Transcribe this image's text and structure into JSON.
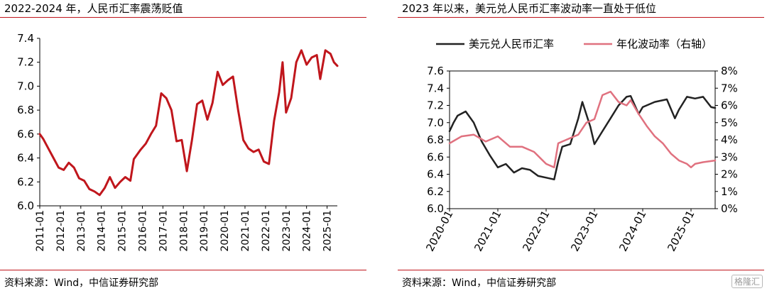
{
  "colors": {
    "accent_red": "#c0161c",
    "pink_series": "#e0717f",
    "black_series": "#222222",
    "axis": "#000000"
  },
  "left_panel": {
    "title": "2022-2024 年，人民币汇率震荡贬值",
    "source": "资料来源：Wind，中信证券研究部"
  },
  "right_panel": {
    "title": "2023 年以来，美元兑人民币汇率波动率一直处于低位",
    "source": "资料来源：Wind，中信证券研究部"
  },
  "watermark": "格隆汇",
  "chart_data": [
    {
      "type": "line",
      "title": "",
      "xlabel": "",
      "ylabel": "",
      "xlim": [
        "2011-01",
        "2025-07"
      ],
      "ylim": [
        6.0,
        7.4
      ],
      "y_ticks": [
        "6.0",
        "6.2",
        "6.4",
        "6.6",
        "6.8",
        "7.0",
        "7.2",
        "7.4"
      ],
      "x_ticks": [
        "2011-01",
        "2012-01",
        "2013-01",
        "2014-01",
        "2015-01",
        "2016-01",
        "2017-01",
        "2018-01",
        "2019-01",
        "2020-01",
        "2021-01",
        "2022-01",
        "2023-01",
        "2024-01",
        "2025-01"
      ],
      "grid": false,
      "series": [
        {
          "color": "#c0161c",
          "points": [
            [
              "2011-01",
              6.6
            ],
            [
              "2011-03",
              6.56
            ],
            [
              "2011-06",
              6.48
            ],
            [
              "2011-09",
              6.4
            ],
            [
              "2011-12",
              6.32
            ],
            [
              "2012-03",
              6.3
            ],
            [
              "2012-06",
              6.36
            ],
            [
              "2012-09",
              6.32
            ],
            [
              "2012-12",
              6.23
            ],
            [
              "2013-03",
              6.21
            ],
            [
              "2013-06",
              6.14
            ],
            [
              "2013-09",
              6.12
            ],
            [
              "2013-12",
              6.09
            ],
            [
              "2014-03",
              6.15
            ],
            [
              "2014-06",
              6.24
            ],
            [
              "2014-09",
              6.15
            ],
            [
              "2014-12",
              6.2
            ],
            [
              "2015-03",
              6.24
            ],
            [
              "2015-06",
              6.21
            ],
            [
              "2015-08",
              6.39
            ],
            [
              "2015-12",
              6.47
            ],
            [
              "2016-03",
              6.52
            ],
            [
              "2016-06",
              6.6
            ],
            [
              "2016-09",
              6.67
            ],
            [
              "2016-12",
              6.94
            ],
            [
              "2017-03",
              6.9
            ],
            [
              "2017-06",
              6.8
            ],
            [
              "2017-09",
              6.54
            ],
            [
              "2017-12",
              6.55
            ],
            [
              "2018-03",
              6.29
            ],
            [
              "2018-06",
              6.55
            ],
            [
              "2018-09",
              6.85
            ],
            [
              "2018-12",
              6.88
            ],
            [
              "2019-03",
              6.72
            ],
            [
              "2019-06",
              6.86
            ],
            [
              "2019-09",
              7.12
            ],
            [
              "2019-12",
              7.01
            ],
            [
              "2020-03",
              7.05
            ],
            [
              "2020-06",
              7.08
            ],
            [
              "2020-09",
              6.8
            ],
            [
              "2020-12",
              6.55
            ],
            [
              "2021-03",
              6.48
            ],
            [
              "2021-06",
              6.45
            ],
            [
              "2021-09",
              6.47
            ],
            [
              "2021-12",
              6.37
            ],
            [
              "2022-03",
              6.35
            ],
            [
              "2022-06",
              6.71
            ],
            [
              "2022-09",
              6.95
            ],
            [
              "2022-11",
              7.2
            ],
            [
              "2023-01",
              6.78
            ],
            [
              "2023-04",
              6.9
            ],
            [
              "2023-07",
              7.2
            ],
            [
              "2023-10",
              7.3
            ],
            [
              "2024-01",
              7.18
            ],
            [
              "2024-04",
              7.24
            ],
            [
              "2024-07",
              7.26
            ],
            [
              "2024-09",
              7.06
            ],
            [
              "2024-12",
              7.3
            ],
            [
              "2025-03",
              7.27
            ],
            [
              "2025-05",
              7.2
            ],
            [
              "2025-07",
              7.17
            ]
          ]
        }
      ]
    },
    {
      "type": "line",
      "title": "",
      "xlabel": "",
      "ylabel": "",
      "y2label": "",
      "xlim": [
        "2020-01",
        "2025-07"
      ],
      "ylim": [
        6.0,
        7.6
      ],
      "y2lim": [
        0,
        8
      ],
      "y_ticks": [
        "6.0",
        "6.2",
        "6.4",
        "6.6",
        "6.8",
        "7.0",
        "7.2",
        "7.4",
        "7.6"
      ],
      "y2_ticks": [
        "0%",
        "1%",
        "2%",
        "3%",
        "4%",
        "5%",
        "6%",
        "7%",
        "8%"
      ],
      "x_ticks": [
        "2020-01",
        "2021-01",
        "2022-01",
        "2023-01",
        "2024-01",
        "2025-01"
      ],
      "legend_position": "top",
      "grid": false,
      "series": [
        {
          "name": "美元兑人民币汇率",
          "color": "#222222",
          "axis": "left",
          "points": [
            [
              "2020-01",
              6.9
            ],
            [
              "2020-02",
              7.0
            ],
            [
              "2020-03",
              7.08
            ],
            [
              "2020-05",
              7.13
            ],
            [
              "2020-07",
              7.0
            ],
            [
              "2020-09",
              6.78
            ],
            [
              "2020-11",
              6.62
            ],
            [
              "2021-01",
              6.48
            ],
            [
              "2021-03",
              6.52
            ],
            [
              "2021-05",
              6.42
            ],
            [
              "2021-07",
              6.47
            ],
            [
              "2021-09",
              6.45
            ],
            [
              "2021-11",
              6.38
            ],
            [
              "2022-01",
              6.36
            ],
            [
              "2022-03",
              6.34
            ],
            [
              "2022-04",
              6.55
            ],
            [
              "2022-05",
              6.72
            ],
            [
              "2022-07",
              6.75
            ],
            [
              "2022-09",
              7.05
            ],
            [
              "2022-10",
              7.24
            ],
            [
              "2022-12",
              6.95
            ],
            [
              "2023-01",
              6.75
            ],
            [
              "2023-03",
              6.9
            ],
            [
              "2023-05",
              7.05
            ],
            [
              "2023-07",
              7.2
            ],
            [
              "2023-09",
              7.3
            ],
            [
              "2023-10",
              7.31
            ],
            [
              "2023-12",
              7.1
            ],
            [
              "2024-01",
              7.18
            ],
            [
              "2024-04",
              7.24
            ],
            [
              "2024-07",
              7.27
            ],
            [
              "2024-09",
              7.05
            ],
            [
              "2024-10",
              7.15
            ],
            [
              "2024-12",
              7.3
            ],
            [
              "2025-02",
              7.28
            ],
            [
              "2025-04",
              7.3
            ],
            [
              "2025-06",
              7.18
            ],
            [
              "2025-07",
              7.17
            ]
          ]
        },
        {
          "name": "年化波动率（右轴）",
          "color": "#e0717f",
          "axis": "right",
          "unit": "%",
          "points": [
            [
              "2020-01",
              3.8
            ],
            [
              "2020-04",
              4.2
            ],
            [
              "2020-07",
              4.3
            ],
            [
              "2020-10",
              3.9
            ],
            [
              "2021-01",
              4.2
            ],
            [
              "2021-04",
              3.6
            ],
            [
              "2021-07",
              3.6
            ],
            [
              "2021-10",
              3.3
            ],
            [
              "2022-01",
              2.6
            ],
            [
              "2022-03",
              2.4
            ],
            [
              "2022-04",
              3.8
            ],
            [
              "2022-06",
              4.0
            ],
            [
              "2022-09",
              4.3
            ],
            [
              "2022-11",
              5.0
            ],
            [
              "2023-01",
              5.2
            ],
            [
              "2023-03",
              6.6
            ],
            [
              "2023-05",
              6.8
            ],
            [
              "2023-07",
              6.2
            ],
            [
              "2023-09",
              6.0
            ],
            [
              "2023-10",
              6.3
            ],
            [
              "2023-12",
              5.5
            ],
            [
              "2024-02",
              4.8
            ],
            [
              "2024-04",
              4.2
            ],
            [
              "2024-06",
              3.8
            ],
            [
              "2024-08",
              3.2
            ],
            [
              "2024-10",
              2.8
            ],
            [
              "2024-12",
              2.6
            ],
            [
              "2025-01",
              2.4
            ],
            [
              "2025-02",
              2.6
            ],
            [
              "2025-04",
              2.7
            ],
            [
              "2025-07",
              2.8
            ]
          ]
        }
      ]
    }
  ]
}
